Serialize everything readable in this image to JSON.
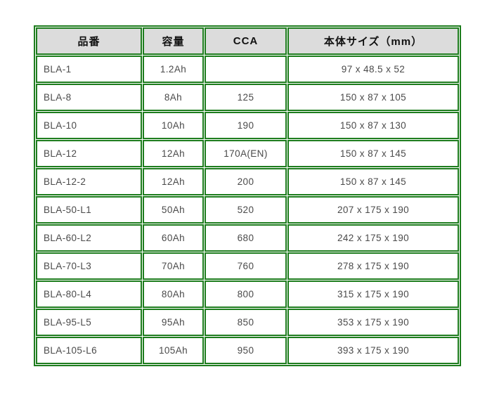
{
  "chart_data": {
    "type": "table",
    "title": "",
    "columns": [
      "品番",
      "容量",
      "CCA",
      "本体サイズ（mm）"
    ],
    "column_keys": [
      "part-number",
      "capacity",
      "cca",
      "body-size"
    ],
    "rows": [
      [
        "BLA-1",
        "1.2Ah",
        "",
        "97 x 48.5 x 52"
      ],
      [
        "BLA-8",
        "8Ah",
        "125",
        "150 x 87 x 105"
      ],
      [
        "BLA-10",
        "10Ah",
        "190",
        "150 x 87 x 130"
      ],
      [
        "BLA-12",
        "12Ah",
        "170A(EN)",
        "150 x 87 x 145"
      ],
      [
        "BLA-12-2",
        "12Ah",
        "200",
        "150 x 87 x 145"
      ],
      [
        "BLA-50-L1",
        "50Ah",
        "520",
        "207 x 175 x 190"
      ],
      [
        "BLA-60-L2",
        "60Ah",
        "680",
        "242 x 175 x 190"
      ],
      [
        "BLA-70-L3",
        "70Ah",
        "760",
        "278 x 175 x 190"
      ],
      [
        "BLA-80-L4",
        "80Ah",
        "800",
        "315 x 175 x 190"
      ],
      [
        "BLA-95-L5",
        "95Ah",
        "850",
        "353 x 175 x 190"
      ],
      [
        "BLA-105-L6",
        "105Ah",
        "950",
        "393 x 175 x 190"
      ]
    ]
  },
  "colors": {
    "border_green": "#1e7d1e",
    "header_bg": "#dcdcdc",
    "header_text": "#111111",
    "cell_text": "#4a4a4a",
    "page_bg": "#ffffff"
  }
}
